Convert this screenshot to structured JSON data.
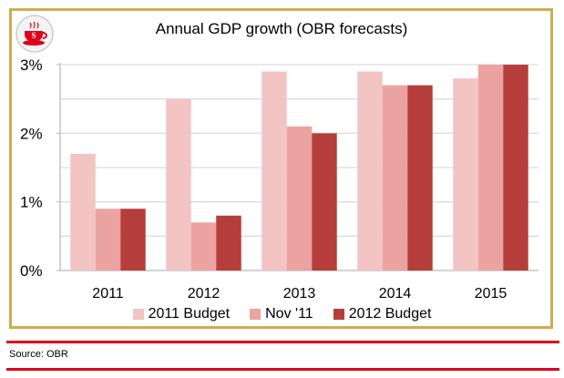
{
  "chart_data": {
    "type": "bar",
    "title": "Annual GDP growth (OBR forecasts)",
    "categories": [
      "2011",
      "2012",
      "2013",
      "2014",
      "2015"
    ],
    "series": [
      {
        "name": "2011 Budget",
        "values": [
          1.7,
          2.5,
          2.9,
          2.9,
          2.8
        ],
        "color": "#f2c4c3"
      },
      {
        "name": "Nov '11",
        "values": [
          0.9,
          0.7,
          2.1,
          2.7,
          3.0
        ],
        "color": "#eba3a1"
      },
      {
        "name": "2012 Budget",
        "values": [
          0.9,
          0.8,
          2.0,
          2.7,
          3.0
        ],
        "color": "#b53e3c"
      }
    ],
    "yticks": [
      "0%",
      "1%",
      "2%",
      "3%"
    ],
    "ylim": [
      0,
      3
    ],
    "grid": true,
    "legend": "bottom"
  },
  "source": "Source: OBR",
  "colors": {
    "frame": "#cdae4e",
    "rule": "#e0001a",
    "logo": "#e0001a"
  },
  "icons": {
    "logo": "red-teacup-s-logo"
  }
}
